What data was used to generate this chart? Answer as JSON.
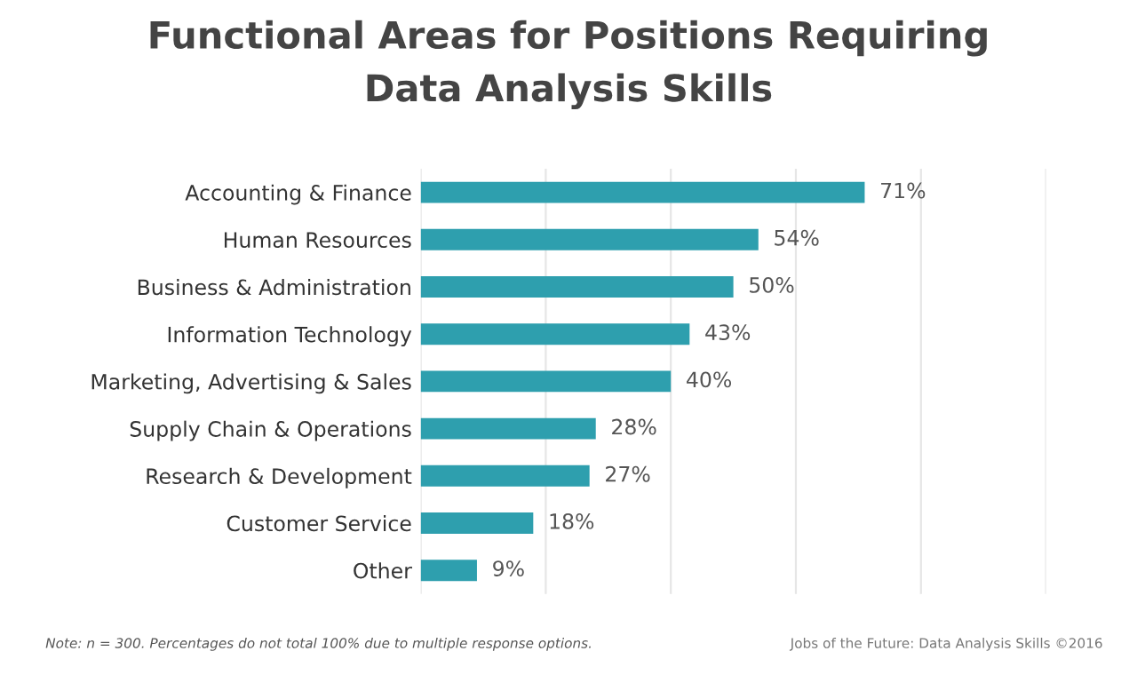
{
  "chart_data": {
    "type": "bar",
    "orientation": "horizontal",
    "title": "Functional Areas for Positions Requiring\nData Analysis Skills",
    "categories": [
      "Accounting & Finance",
      "Human Resources",
      "Business & Administration",
      "Information Technology",
      "Marketing, Advertising & Sales",
      "Supply Chain & Operations",
      "Research & Development",
      "Customer Service",
      "Other"
    ],
    "values": [
      71,
      54,
      50,
      43,
      40,
      28,
      27,
      18,
      9
    ],
    "value_labels": [
      "71%",
      "54%",
      "50%",
      "43%",
      "40%",
      "28%",
      "27%",
      "18%",
      "9%"
    ],
    "color": "#2e9fae",
    "xlim": [
      0,
      100
    ],
    "xticks": [
      {
        "value": 0,
        "label": null
      },
      {
        "value": 20,
        "label": null
      },
      {
        "value": 40,
        "label": null
      },
      {
        "value": 60,
        "label": null
      },
      {
        "value": 80,
        "label": null
      },
      {
        "value": 100,
        "label": null
      }
    ],
    "grid": "x",
    "tick_labels": "y",
    "legend": false,
    "annotations": [
      "Note: n = 300. Percentages do not total 100% due to multiple response options.",
      "Jobs of the Future: Data Analysis Skills ©2016"
    ]
  }
}
